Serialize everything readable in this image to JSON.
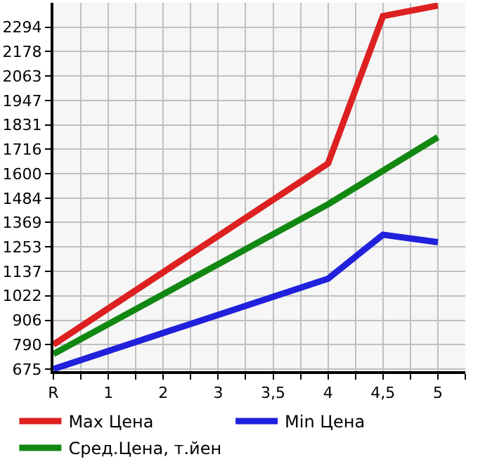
{
  "chart_data": {
    "type": "line",
    "categories": [
      "R",
      "1",
      "2",
      "3",
      "3,5",
      "4",
      "4,5",
      "5"
    ],
    "series": [
      {
        "name": "Max Цена",
        "color": "#dd2020",
        "values": [
          791,
          null,
          null,
          null,
          null,
          1648,
          2346,
          2396
        ]
      },
      {
        "name": "Min Цена",
        "color": "#2020dd",
        "values": [
          675,
          null,
          null,
          null,
          null,
          1103,
          1311,
          1276
        ]
      },
      {
        "name": "Сред.Цена, т.йен",
        "color": "#118811",
        "values": [
          746,
          null,
          null,
          null,
          null,
          1455,
          null,
          1773
        ]
      }
    ],
    "ylim": [
      665,
      2409
    ],
    "yticks": [
      675,
      790,
      906,
      1022,
      1137,
      1253,
      1369,
      1484,
      1600,
      1716,
      1831,
      1947,
      2063,
      2178,
      2294
    ],
    "grid": true,
    "legend": "bottom",
    "marker": "none",
    "line_style": "solid"
  }
}
